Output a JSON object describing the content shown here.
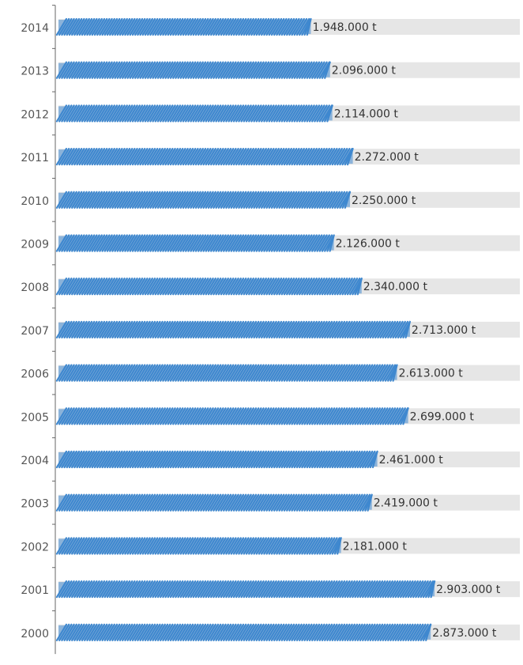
{
  "chart_data": {
    "type": "bar",
    "orientation": "horizontal",
    "title": "",
    "xlabel": "",
    "ylabel": "",
    "categories": [
      "2014",
      "2013",
      "2012",
      "2011",
      "2010",
      "2009",
      "2008",
      "2007",
      "2006",
      "2005",
      "2004",
      "2003",
      "2002",
      "2001",
      "2000"
    ],
    "values": [
      1948000,
      2096000,
      2114000,
      2272000,
      2250000,
      2126000,
      2340000,
      2713000,
      2613000,
      2699000,
      2461000,
      2419000,
      2181000,
      2903000,
      2873000
    ],
    "value_labels": [
      "1.948.000 t",
      "2.096.000 t",
      "2.114.000 t",
      "2.272.000 t",
      "2.250.000 t",
      "2.126.000 t",
      "2.340.000 t",
      "2.713.000 t",
      "2.613.000 t",
      "2.699.000 t",
      "2.461.000 t",
      "2.419.000 t",
      "2.181.000 t",
      "2.903.000 t",
      "2.873.000 t"
    ],
    "unit": "t",
    "bar_style": "hand-drawn hatched",
    "bar_color": "#3f88cf",
    "track_color": "#e6e6e6",
    "grid": false,
    "legend": "none"
  }
}
